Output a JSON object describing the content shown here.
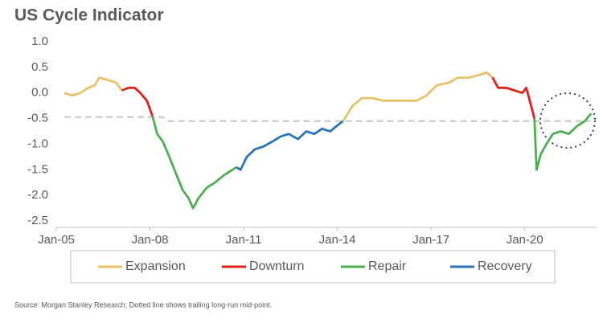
{
  "chart_data": {
    "type": "line",
    "title": "US Cycle Indicator",
    "source": "Source: Morgan Stanley Research; Dotted line shows trailing long-run mid-point.",
    "xlim": [
      2005,
      2022.3
    ],
    "ylim": [
      -2.5,
      1.0
    ],
    "xticks": [
      {
        "value": 2005,
        "label": "Jan-05"
      },
      {
        "value": 2008,
        "label": "Jan-08"
      },
      {
        "value": 2011,
        "label": "Jan-11"
      },
      {
        "value": 2014,
        "label": "Jan-14"
      },
      {
        "value": 2017,
        "label": "Jan-17"
      },
      {
        "value": 2020,
        "label": "Jan-20"
      }
    ],
    "yticks": [
      {
        "value": 1.0,
        "label": "1.0"
      },
      0.5,
      {
        "value": 0.0,
        "label": "0.0"
      },
      -0.5,
      {
        "value": -1.0,
        "label": "-1.0"
      },
      -1.5,
      {
        "value": -2.0,
        "label": "-2.0"
      },
      -2.5
    ],
    "grid": false,
    "legend": "bottom",
    "series": [
      {
        "name": "Expansion",
        "color": "#e8c26a",
        "x": [
          2005.26,
          2005.51,
          2005.77,
          2006.03,
          2006.23,
          2006.38,
          2006.67,
          2006.92,
          2007.1,
          null,
          2014.18,
          2014.49,
          2014.79,
          2015.13,
          2015.46,
          2015.82,
          2016.15,
          2016.54,
          2016.85,
          2017.18,
          2017.56,
          2017.87,
          2018.21,
          2018.54,
          2018.79,
          2018.97
        ],
        "values": [
          0.0,
          -0.05,
          0.0,
          0.1,
          0.15,
          0.3,
          0.25,
          0.2,
          0.05,
          null,
          -0.55,
          -0.25,
          -0.1,
          -0.1,
          -0.15,
          -0.15,
          -0.15,
          -0.15,
          -0.05,
          0.15,
          0.2,
          0.3,
          0.3,
          0.35,
          0.4,
          0.3
        ]
      },
      {
        "name": "Downturn",
        "color": "#e0201b",
        "x": [
          2007.1,
          2007.31,
          2007.51,
          2007.69,
          2007.9,
          2008.08,
          null,
          2018.97,
          2019.15,
          2019.41,
          2019.67,
          2019.92,
          2020.05,
          2020.18,
          2020.31
        ],
        "values": [
          0.05,
          0.1,
          0.1,
          0.0,
          -0.15,
          -0.45,
          null,
          0.3,
          0.1,
          0.1,
          0.05,
          0.0,
          0.1,
          -0.2,
          -0.5
        ]
      },
      {
        "name": "Repair",
        "color": "#4caf50",
        "x": [
          2008.08,
          2008.23,
          2008.41,
          2008.59,
          2008.85,
          2009.05,
          2009.23,
          2009.38,
          2009.56,
          2009.82,
          2010.08,
          2010.38,
          2010.64,
          2010.77,
          null,
          2020.31,
          2020.38,
          2020.51,
          2020.69,
          2020.9,
          2021.15,
          2021.41,
          2021.67,
          2021.92,
          2022.13
        ],
        "values": [
          -0.45,
          -0.8,
          -0.95,
          -1.2,
          -1.6,
          -1.9,
          -2.05,
          -2.25,
          -2.05,
          -1.85,
          -1.75,
          -1.6,
          -1.5,
          -1.45,
          null,
          -0.5,
          -1.5,
          -1.2,
          -1.0,
          -0.8,
          -0.75,
          -0.8,
          -0.65,
          -0.55,
          -0.4
        ]
      },
      {
        "name": "Recovery",
        "color": "#2a73b5",
        "x": [
          2010.77,
          2010.9,
          2011.1,
          2011.36,
          2011.62,
          2011.92,
          2012.18,
          2012.44,
          2012.74,
          2013.0,
          2013.26,
          2013.51,
          2013.77,
          2013.97,
          2014.18
        ],
        "values": [
          -1.45,
          -1.5,
          -1.25,
          -1.1,
          -1.05,
          -0.95,
          -0.85,
          -0.8,
          -0.9,
          -0.75,
          -0.8,
          -0.7,
          -0.75,
          -0.65,
          -0.55
        ]
      }
    ],
    "reference_line": {
      "color": "#cfcfcf",
      "x": [
        2005.26,
        2008.4,
        2008.6,
        2022.1
      ],
      "values": [
        -0.47,
        -0.47,
        -0.55,
        -0.55
      ]
    }
  }
}
